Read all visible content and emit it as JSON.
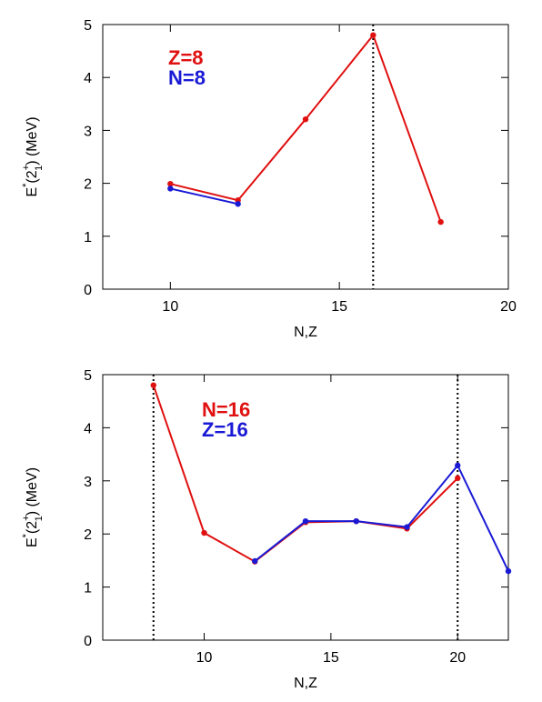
{
  "chart_data": [
    {
      "type": "line",
      "xlabel": "N,Z",
      "ylabel": {
        "main": "E",
        "sup1": "*",
        "paren_open": "(2",
        "sup2": "+",
        "sub": "1",
        "paren_close": ") (MeV)"
      },
      "xlim": [
        8,
        20
      ],
      "ylim": [
        0,
        5
      ],
      "xticks": [
        10,
        15,
        20
      ],
      "yticks": [
        0,
        1,
        2,
        3,
        4,
        5
      ],
      "vlines": [
        16
      ],
      "series": [
        {
          "name": "Z=8",
          "color": "#e01010",
          "x": [
            10,
            12,
            14,
            16,
            18
          ],
          "y": [
            1.99,
            1.68,
            3.21,
            4.8,
            1.27
          ]
        },
        {
          "name": "N=8",
          "color": "#1a1ad6",
          "x": [
            10,
            12
          ],
          "y": [
            1.9,
            1.61
          ]
        }
      ]
    },
    {
      "type": "line",
      "xlabel": "N,Z",
      "ylabel": {
        "main": "E",
        "sup1": "*",
        "paren_open": "(2",
        "sup2": "+",
        "sub": "1",
        "paren_close": ") (MeV)"
      },
      "xlim": [
        6,
        22
      ],
      "ylim": [
        0,
        5
      ],
      "xticks": [
        10,
        15,
        20
      ],
      "yticks": [
        0,
        1,
        2,
        3,
        4,
        5
      ],
      "vlines": [
        8,
        20
      ],
      "series": [
        {
          "name": "N=16",
          "color": "#e01010",
          "x": [
            8,
            10,
            12,
            14,
            16,
            18,
            20
          ],
          "y": [
            4.8,
            2.02,
            1.48,
            2.22,
            2.24,
            2.1,
            3.05
          ]
        },
        {
          "name": "Z=16",
          "color": "#1a1ad6",
          "x": [
            12,
            14,
            16,
            18,
            20,
            22
          ],
          "y": [
            1.49,
            2.24,
            2.24,
            2.13,
            3.29,
            1.3
          ]
        }
      ]
    }
  ]
}
